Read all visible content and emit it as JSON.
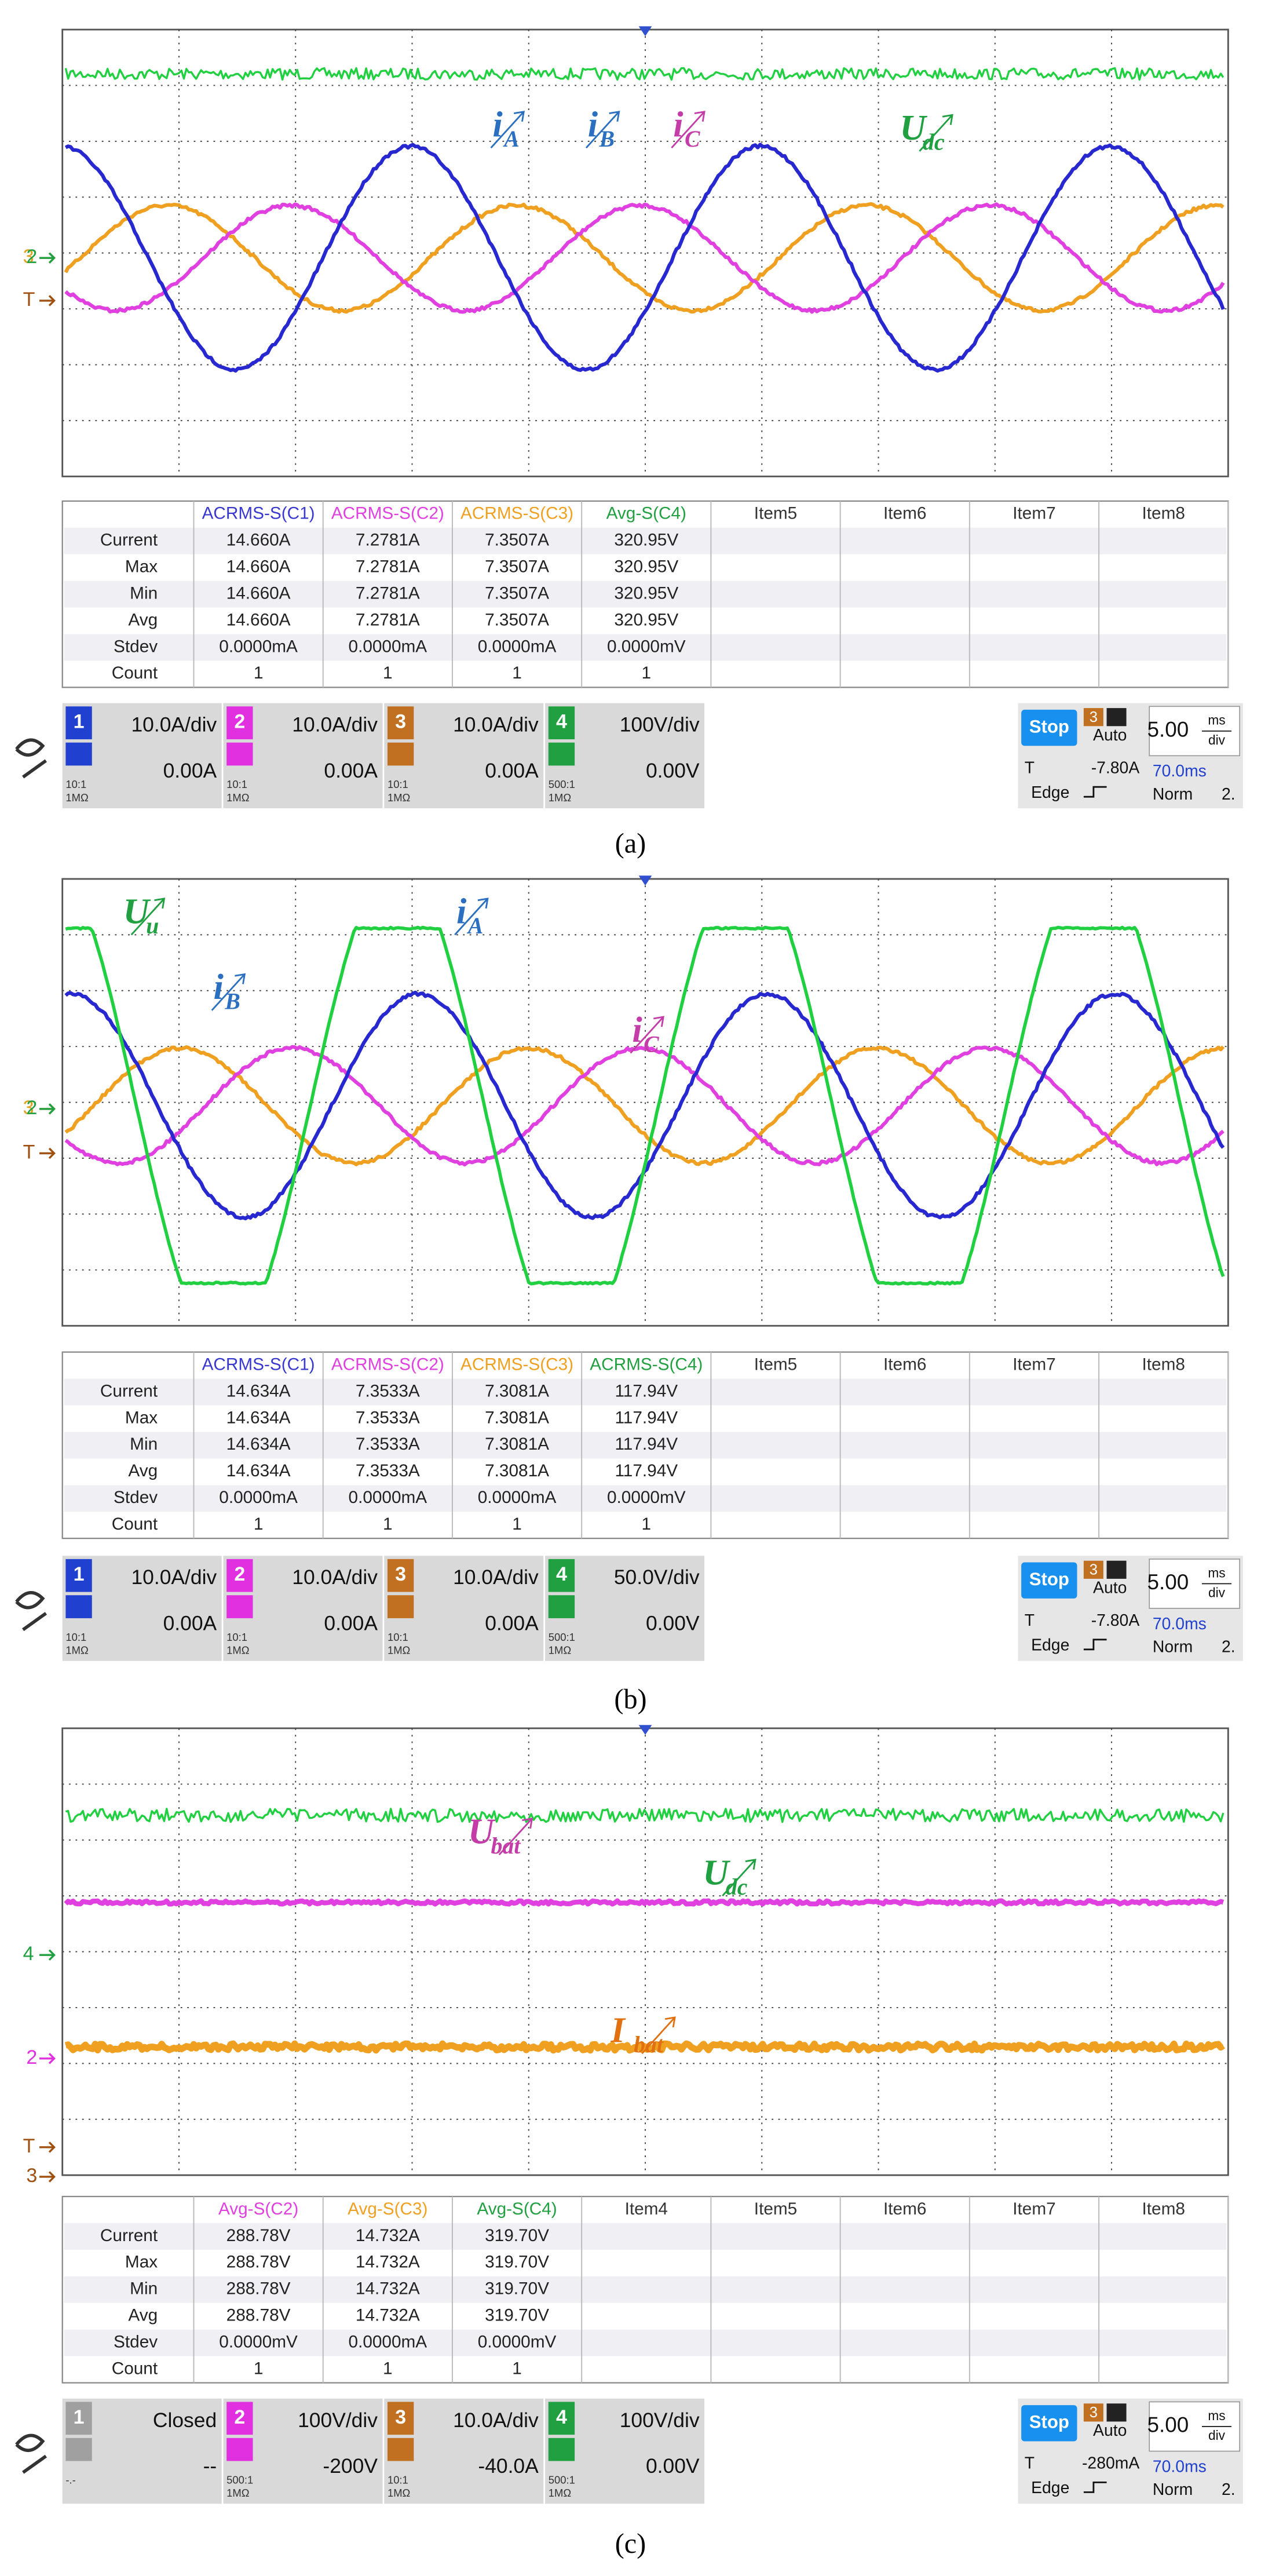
{
  "panels": [
    {
      "annotations": [
        {
          "text": "i",
          "sub": "A",
          "color": "#2a6fc0"
        },
        {
          "text": "i",
          "sub": "B",
          "color": "#2a6fc0"
        },
        {
          "text": "i",
          "sub": "C",
          "color": "#c43ca8"
        },
        {
          "text": "U",
          "sub": "dc",
          "color": "#20a040"
        }
      ],
      "markers": [
        {
          "text": "3",
          "color": "#e0a020"
        },
        {
          "text": "2",
          "color": "#20a040"
        },
        {
          "text": "T",
          "color": "#a05010"
        }
      ],
      "table": {
        "headers": [
          "ACRMS-S(C1)",
          "ACRMS-S(C2)",
          "ACRMS-S(C3)",
          "Avg-S(C4)",
          "Item5",
          "Item6",
          "Item7",
          "Item8"
        ],
        "header_colors": [
          "#3838d0",
          "#e040e0",
          "#f0a020",
          "#20a040",
          "#333333",
          "#333333",
          "#333333",
          "#333333"
        ],
        "rows": [
          [
            "Current",
            "14.660A",
            "7.2781A",
            "7.3507A",
            "320.95V"
          ],
          [
            "Max",
            "14.660A",
            "7.2781A",
            "7.3507A",
            "320.95V"
          ],
          [
            "Min",
            "14.660A",
            "7.2781A",
            "7.3507A",
            "320.95V"
          ],
          [
            "Avg",
            "14.660A",
            "7.2781A",
            "7.3507A",
            "320.95V"
          ],
          [
            "Stdev",
            "0.0000mA",
            "0.0000mA",
            "0.0000mA",
            "0.0000mV"
          ],
          [
            "Count",
            "1",
            "1",
            "1",
            "1"
          ]
        ]
      },
      "channels": [
        {
          "number": "1",
          "scale": "10.0A/div",
          "offset": "0.00A",
          "probe": [
            "10:1",
            "1MΩ"
          ],
          "color": "#2040d0"
        },
        {
          "number": "2",
          "scale": "10.0A/div",
          "offset": "0.00A",
          "probe": [
            "10:1",
            "1MΩ"
          ],
          "color": "#e030e0"
        },
        {
          "number": "3",
          "scale": "10.0A/div",
          "offset": "0.00A",
          "probe": [
            "10:1",
            "1MΩ"
          ],
          "color": "#c07020"
        },
        {
          "number": "4",
          "scale": "100V/div",
          "offset": "0.00V",
          "probe": [
            "500:1",
            "1MΩ"
          ],
          "color": "#20a040"
        }
      ],
      "status": {
        "state": "Stop",
        "source": "3",
        "mode": "Auto",
        "trigger_label": "T",
        "trigger_level": "-7.80A",
        "edge": "Edge",
        "timebase": "5.00",
        "timebase_unit": "ms",
        "timebase_per": "div",
        "delay": "70.0ms",
        "norm": "Norm",
        "extra": "2."
      },
      "caption": "(a)"
    },
    {
      "annotations": [
        {
          "text": "U",
          "sub": "u",
          "color": "#20a040"
        },
        {
          "text": "i",
          "sub": "A",
          "color": "#2a6fc0"
        },
        {
          "text": "i",
          "sub": "B",
          "color": "#2a6fc0"
        },
        {
          "text": "i",
          "sub": "C",
          "color": "#c43ca8"
        }
      ],
      "markers": [
        {
          "text": "3",
          "color": "#e0a020"
        },
        {
          "text": "2",
          "color": "#20a040"
        },
        {
          "text": "T",
          "color": "#a05010"
        }
      ],
      "table": {
        "headers": [
          "ACRMS-S(C1)",
          "ACRMS-S(C2)",
          "ACRMS-S(C3)",
          "ACRMS-S(C4)",
          "Item5",
          "Item6",
          "Item7",
          "Item8"
        ],
        "header_colors": [
          "#3838d0",
          "#e040e0",
          "#f0a020",
          "#20a040",
          "#333333",
          "#333333",
          "#333333",
          "#333333"
        ],
        "rows": [
          [
            "Current",
            "14.634A",
            "7.3533A",
            "7.3081A",
            "117.94V"
          ],
          [
            "Max",
            "14.634A",
            "7.3533A",
            "7.3081A",
            "117.94V"
          ],
          [
            "Min",
            "14.634A",
            "7.3533A",
            "7.3081A",
            "117.94V"
          ],
          [
            "Avg",
            "14.634A",
            "7.3533A",
            "7.3081A",
            "117.94V"
          ],
          [
            "Stdev",
            "0.0000mA",
            "0.0000mA",
            "0.0000mA",
            "0.0000mV"
          ],
          [
            "Count",
            "1",
            "1",
            "1",
            "1"
          ]
        ]
      },
      "channels": [
        {
          "number": "1",
          "scale": "10.0A/div",
          "offset": "0.00A",
          "probe": [
            "10:1",
            "1MΩ"
          ],
          "color": "#2040d0"
        },
        {
          "number": "2",
          "scale": "10.0A/div",
          "offset": "0.00A",
          "probe": [
            "10:1",
            "1MΩ"
          ],
          "color": "#e030e0"
        },
        {
          "number": "3",
          "scale": "10.0A/div",
          "offset": "0.00A",
          "probe": [
            "10:1",
            "1MΩ"
          ],
          "color": "#c07020"
        },
        {
          "number": "4",
          "scale": "50.0V/div",
          "offset": "0.00V",
          "probe": [
            "500:1",
            "1MΩ"
          ],
          "color": "#20a040"
        }
      ],
      "status": {
        "state": "Stop",
        "source": "3",
        "mode": "Auto",
        "trigger_label": "T",
        "trigger_level": "-7.80A",
        "edge": "Edge",
        "timebase": "5.00",
        "timebase_unit": "ms",
        "timebase_per": "div",
        "delay": "70.0ms",
        "norm": "Norm",
        "extra": "2."
      },
      "caption": "(b)"
    },
    {
      "annotations": [
        {
          "text": "U",
          "sub": "bat",
          "color": "#c43ca8"
        },
        {
          "text": "U",
          "sub": "dc",
          "color": "#20a040"
        },
        {
          "text": "I",
          "sub": "bat",
          "color": "#e07010"
        }
      ],
      "markers": [
        {
          "text": "4",
          "color": "#20a040"
        },
        {
          "text": "2",
          "color": "#e030e0"
        },
        {
          "text": "T",
          "color": "#a05010"
        },
        {
          "text": "3",
          "color": "#a05010"
        }
      ],
      "table": {
        "headers": [
          "Avg-S(C2)",
          "Avg-S(C3)",
          "Avg-S(C4)",
          "Item4",
          "Item5",
          "Item6",
          "Item7",
          "Item8"
        ],
        "header_colors": [
          "#e040e0",
          "#f0a020",
          "#20a040",
          "#333333",
          "#333333",
          "#333333",
          "#333333",
          "#333333"
        ],
        "rows": [
          [
            "Current",
            "288.78V",
            "14.732A",
            "319.70V"
          ],
          [
            "Max",
            "288.78V",
            "14.732A",
            "319.70V"
          ],
          [
            "Min",
            "288.78V",
            "14.732A",
            "319.70V"
          ],
          [
            "Avg",
            "288.78V",
            "14.732A",
            "319.70V"
          ],
          [
            "Stdev",
            "0.0000mV",
            "0.0000mA",
            "0.0000mV"
          ],
          [
            "Count",
            "1",
            "1",
            "1"
          ]
        ]
      },
      "channels": [
        {
          "number": "1",
          "scale": "Closed",
          "offset": "--",
          "probe": [
            "-.-"
          ],
          "color": "#a0a0a0"
        },
        {
          "number": "2",
          "scale": "100V/div",
          "offset": "-200V",
          "probe": [
            "500:1",
            "1MΩ"
          ],
          "color": "#e030e0"
        },
        {
          "number": "3",
          "scale": "10.0A/div",
          "offset": "-40.0A",
          "probe": [
            "10:1",
            "1MΩ"
          ],
          "color": "#c07020"
        },
        {
          "number": "4",
          "scale": "100V/div",
          "offset": "0.00V",
          "probe": [
            "500:1",
            "1MΩ"
          ],
          "color": "#20a040"
        }
      ],
      "status": {
        "state": "Stop",
        "source": "3",
        "mode": "Auto",
        "trigger_label": "T",
        "trigger_level": "-280mA",
        "edge": "Edge",
        "timebase": "5.00",
        "timebase_unit": "ms",
        "timebase_per": "div",
        "delay": "70.0ms",
        "norm": "Norm",
        "extra": "2."
      },
      "caption": "(c)"
    }
  ]
}
